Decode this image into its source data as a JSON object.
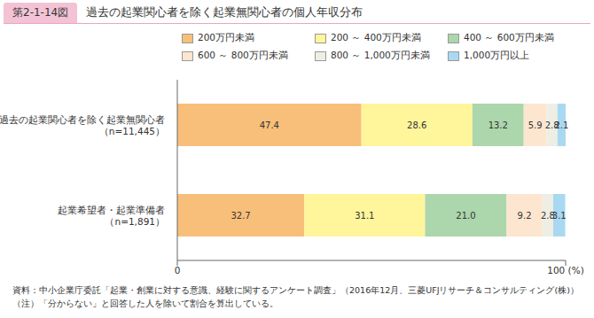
{
  "chart_data": {
    "type": "bar",
    "orientation": "horizontal",
    "stacked": true,
    "data_labels": true,
    "figure_number": "第2-1-14図",
    "title": "過去の起業関心者を除く起業無関心者の個人年収分布",
    "categories": [
      "過去の起業関心者を除く起業無関心者\n（n=11,445）",
      "起業希望者・起業準備者\n（n=1,891）"
    ],
    "series": [
      {
        "name": "200万円未満",
        "color": "#f8bf7a",
        "values": [
          47.4,
          32.7
        ]
      },
      {
        "name": "200 ～ 400万円未満",
        "color": "#fff59b",
        "values": [
          28.6,
          31.1
        ]
      },
      {
        "name": "400 ～ 600万円未満",
        "color": "#acd6ac",
        "values": [
          13.2,
          21.0
        ],
        "value_labels": [
          "13.2",
          "21.0"
        ]
      },
      {
        "name": "600 ～ 800万円未満",
        "color": "#fde6cf",
        "values": [
          5.9,
          9.2
        ]
      },
      {
        "name": "800 ～ 1,000万円未満",
        "color": "#eeeee4",
        "values": [
          2.8,
          2.8
        ]
      },
      {
        "name": "1,000万円以上",
        "color": "#a9d9f2",
        "values": [
          2.1,
          3.1
        ]
      }
    ],
    "xlim": [
      0,
      100
    ],
    "xticks": [
      0,
      {
        "value": 100,
        "label": "100 (%)"
      }
    ],
    "notes": [
      "資料：中小企業庁委託「起業・創業に対する意識、経験に関するアンケート調査」（2016年12月、三菱UFJリサーチ＆コンサルティング(株)）",
      "（注）「分からない」と回答した人を除いて割合を算出している。"
    ]
  }
}
